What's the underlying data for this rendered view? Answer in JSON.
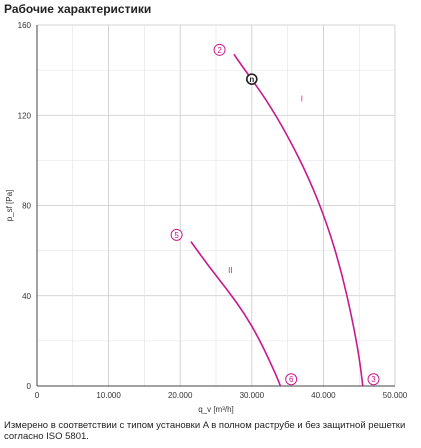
{
  "title": "Рабочие характеристики",
  "caption": "Измерено в соответствии с типом установки A в полном раструбе и без защитной решетки согласно ISO 5801.",
  "colors": {
    "curve": "#c8198c",
    "grid": "#c8c8c8",
    "axis": "#444444",
    "point": "#222222"
  },
  "chart_data": {
    "type": "line",
    "title": "Рабочие характеристики",
    "xlabel": "q_v [m³/h]",
    "ylabel": "p_sf [Pa]",
    "xlim": [
      0,
      50000
    ],
    "ylim": [
      0,
      160
    ],
    "x_ticks": [
      0,
      10000,
      20000,
      30000,
      40000,
      50000
    ],
    "x_tick_labels": [
      "0",
      "10.000",
      "20.000",
      "30.000",
      "40.000",
      "50.000"
    ],
    "y_ticks": [
      0,
      40,
      80,
      120,
      160
    ],
    "y_tick_labels": [
      "0",
      "40",
      "80",
      "120",
      "160"
    ],
    "grid": true,
    "series": [
      {
        "name": "I",
        "start_marker": "2",
        "end_marker": "3",
        "points": [
          [
            27500,
            147
          ],
          [
            29500,
            138
          ],
          [
            32000,
            127
          ],
          [
            35000,
            111
          ],
          [
            38000,
            92
          ],
          [
            40500,
            72
          ],
          [
            42500,
            51
          ],
          [
            44000,
            30
          ],
          [
            45000,
            13
          ],
          [
            45500,
            0
          ]
        ]
      },
      {
        "name": "II",
        "start_marker": "5",
        "end_marker": "6",
        "points": [
          [
            21500,
            64
          ],
          [
            24000,
            53
          ],
          [
            26500,
            43
          ],
          [
            29000,
            32
          ],
          [
            31000,
            21
          ],
          [
            32500,
            11
          ],
          [
            33500,
            4
          ],
          [
            34000,
            0
          ]
        ]
      }
    ],
    "operating_point": {
      "label": "n",
      "x": 30000,
      "y": 136
    },
    "markers": [
      {
        "label": "2",
        "x": 25500,
        "y": 149
      },
      {
        "label": "3",
        "x": 47000,
        "y": 3
      },
      {
        "label": "5",
        "x": 19500,
        "y": 67
      },
      {
        "label": "6",
        "x": 35500,
        "y": 3
      }
    ],
    "curve_labels": [
      {
        "label": "I",
        "x": 37000,
        "y": 126
      },
      {
        "label": "II",
        "x": 27000,
        "y": 50
      }
    ]
  }
}
